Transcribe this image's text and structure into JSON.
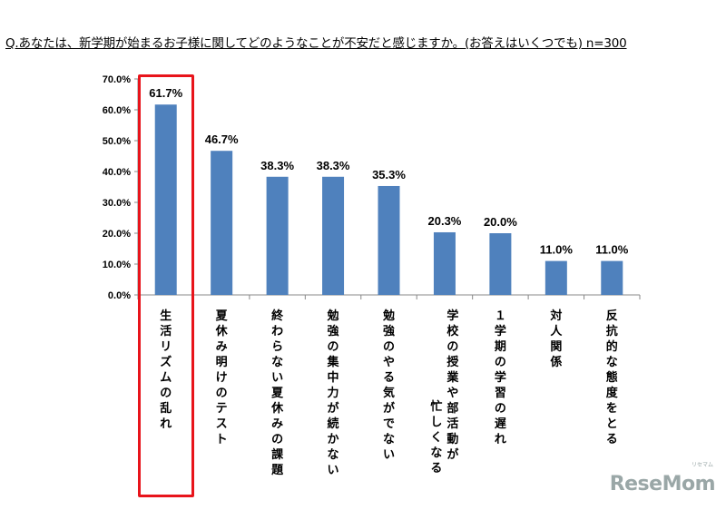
{
  "question": "Q.あなたは、新学期が始まるお子様に関してどのようなことが不安だと感じますか。(お答えはいくつでも) n=300",
  "chart_data": {
    "type": "bar",
    "title": "",
    "xlabel": "",
    "ylabel": "",
    "ylim": [
      0,
      70
    ],
    "yticks": [
      "0.0%",
      "10.0%",
      "20.0%",
      "30.0%",
      "40.0%",
      "50.0%",
      "60.0%",
      "70.0%"
    ],
    "grid": false,
    "bar_color": "#4f81bd",
    "highlight_color": "#e8141b",
    "highlighted_category_index": 0,
    "categories": [
      "生活リズムの乱れ",
      "夏休み明けのテスト",
      "終わらない夏休みの課題",
      "勉強の集中力が続かない",
      "勉強のやる気がでない",
      "学校の授業や部活動が忙しくなる",
      "1学期の学習の遅れ",
      "対人関係",
      "反抗的な態度をとる"
    ],
    "category_lines": [
      [
        "生活リズムの乱れ"
      ],
      [
        "夏休み明けのテスト"
      ],
      [
        "終わらない夏休みの課題"
      ],
      [
        "勉強の集中力が続かない"
      ],
      [
        "勉強のやる気がでない"
      ],
      [
        "学校の授業や部活動が",
        "忙しくなる"
      ],
      [
        "１学期の学習の遅れ"
      ],
      [
        "対人関係"
      ],
      [
        "反抗的な態度をとる"
      ]
    ],
    "values": [
      61.7,
      46.7,
      38.3,
      38.3,
      35.3,
      20.3,
      20.0,
      11.0,
      11.0
    ],
    "value_labels": [
      "61.7%",
      "46.7%",
      "38.3%",
      "38.3%",
      "35.3%",
      "20.3%",
      "20.0%",
      "11.0%",
      "11.0%"
    ]
  },
  "logo": {
    "text": "ReseMom",
    "sub": "リセマム"
  }
}
